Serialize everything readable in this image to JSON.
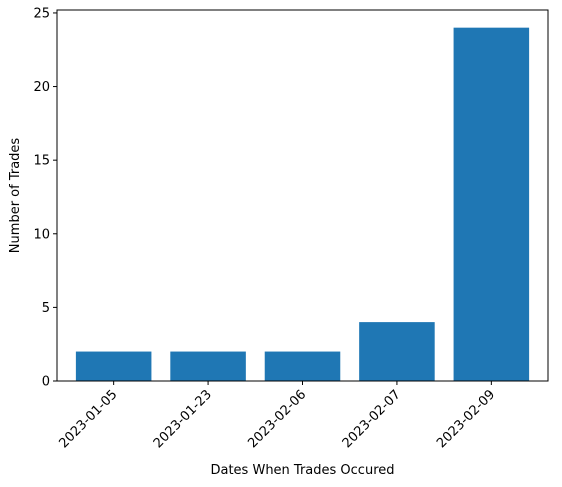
{
  "chart_data": {
    "type": "bar",
    "title": "",
    "xlabel": "Dates When Trades Occured",
    "ylabel": "Number of Trades",
    "categories": [
      "2023-01-05",
      "2023-01-23",
      "2023-02-06",
      "2023-02-07",
      "2023-02-09"
    ],
    "values": [
      2,
      2,
      2,
      4,
      24
    ],
    "ylim": [
      0,
      25.2
    ],
    "yticks": [
      0,
      5,
      10,
      15,
      20,
      25
    ],
    "bar_color": "#1f77b4",
    "grid": false,
    "legend": "none"
  }
}
